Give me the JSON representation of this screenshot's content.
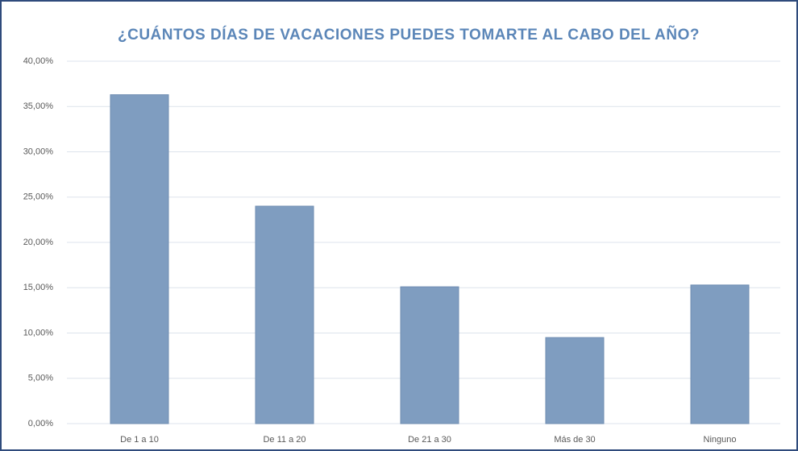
{
  "chart_data": {
    "type": "bar",
    "title": "¿CUÁNTOS DÍAS DE VACACIONES PUEDES TOMARTE AL CABO DEL AÑO?",
    "categories": [
      "De 1 a 10",
      "De 11 a 20",
      "De 21 a 30",
      "Más de 30",
      "Ninguno"
    ],
    "values": [
      36.3,
      24.0,
      15.1,
      9.5,
      15.3
    ],
    "color": "#7f9dc0",
    "ylim": [
      0,
      40
    ],
    "yticks": [
      {
        "value": 0,
        "label": "0,00%"
      },
      {
        "value": 5,
        "label": "5,00%"
      },
      {
        "value": 10,
        "label": "10,00%"
      },
      {
        "value": 15,
        "label": "15,00%"
      },
      {
        "value": 20,
        "label": "20,00%"
      },
      {
        "value": 25,
        "label": "25,00%"
      },
      {
        "value": 30,
        "label": "30,00%"
      },
      {
        "value": 35,
        "label": "35,00%"
      },
      {
        "value": 40,
        "label": "40,00%"
      }
    ],
    "grid": true
  }
}
